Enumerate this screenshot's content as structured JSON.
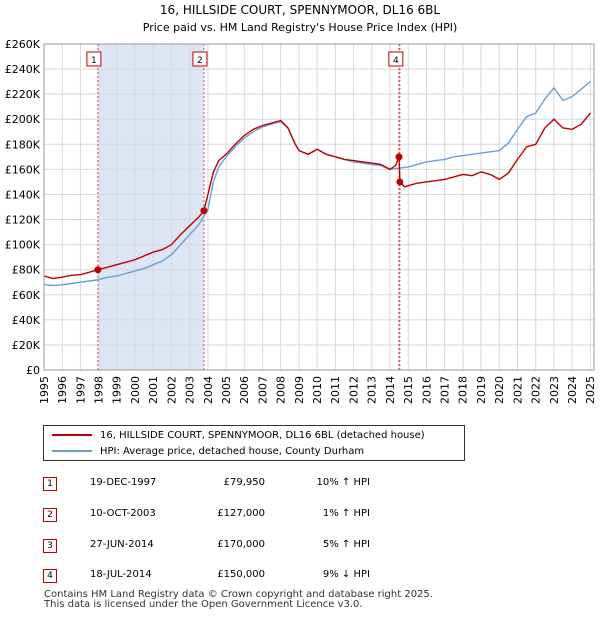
{
  "chart_data": {
    "type": "line",
    "title": "16, HILLSIDE COURT, SPENNYMOOR, DL16 6BL",
    "subtitle": "Price paid vs. HM Land Registry's House Price Index (HPI)",
    "xlabel": "",
    "ylabel": "",
    "xlim": [
      1995,
      2025.2
    ],
    "ylim": [
      0,
      260000
    ],
    "y_ticks": [
      0,
      20000,
      40000,
      60000,
      80000,
      100000,
      120000,
      140000,
      160000,
      180000,
      200000,
      220000,
      240000,
      260000
    ],
    "y_tick_labels": [
      "£0",
      "£20K",
      "£40K",
      "£60K",
      "£80K",
      "£100K",
      "£120K",
      "£140K",
      "£160K",
      "£180K",
      "£200K",
      "£220K",
      "£240K",
      "£260K"
    ],
    "x_ticks": [
      1995,
      1996,
      1997,
      1998,
      1999,
      2000,
      2001,
      2002,
      2003,
      2004,
      2005,
      2006,
      2007,
      2008,
      2009,
      2010,
      2011,
      2012,
      2013,
      2014,
      2015,
      2016,
      2017,
      2018,
      2019,
      2020,
      2021,
      2022,
      2023,
      2024,
      2025
    ],
    "grid": true,
    "shaded_ranges": [
      [
        1997.96,
        2003.78
      ],
      [
        2014.49,
        2014.54
      ]
    ],
    "shade_color": "#dde6f5",
    "series": [
      {
        "name": "16, HILLSIDE COURT, SPENNYMOOR, DL16 6BL (detached house)",
        "color": "#c00000",
        "x": [
          1995,
          1995.5,
          1996,
          1996.5,
          1997,
          1997.5,
          1997.96,
          1998.5,
          1999,
          1999.5,
          2000,
          2000.5,
          2001,
          2001.5,
          2002,
          2002.5,
          2003,
          2003.5,
          2003.78,
          2004,
          2004.3,
          2004.6,
          2005,
          2005.5,
          2006,
          2006.5,
          2007,
          2007.5,
          2008,
          2008.4,
          2008.8,
          2009,
          2009.5,
          2010,
          2010.5,
          2011,
          2011.5,
          2012,
          2012.5,
          2013,
          2013.5,
          2014,
          2014.3,
          2014.49,
          2014.54,
          2014.8,
          2015,
          2015.5,
          2016,
          2016.5,
          2017,
          2017.5,
          2018,
          2018.5,
          2019,
          2019.5,
          2020,
          2020.5,
          2021,
          2021.5,
          2022,
          2022.5,
          2023,
          2023.5,
          2024,
          2024.5,
          2025
        ],
        "values": [
          75000,
          73000,
          74000,
          75500,
          76000,
          78000,
          79950,
          82000,
          84000,
          86000,
          88000,
          91000,
          94000,
          96000,
          100000,
          108000,
          115000,
          122000,
          127000,
          140000,
          158000,
          167000,
          172000,
          180000,
          187000,
          192000,
          195000,
          197000,
          199000,
          193000,
          180000,
          175000,
          172000,
          176000,
          172000,
          170000,
          168000,
          167000,
          166000,
          165000,
          164000,
          160000,
          163000,
          170000,
          150000,
          146000,
          147000,
          149000,
          150000,
          151000,
          152000,
          154000,
          156000,
          155000,
          158000,
          156000,
          152000,
          157000,
          168000,
          178000,
          180000,
          193000,
          200000,
          193000,
          192000,
          196000,
          205000
        ]
      },
      {
        "name": "HPI: Average price, detached house, County Durham",
        "color": "#6a9fd4",
        "x": [
          1995,
          1995.5,
          1996,
          1996.5,
          1997,
          1997.5,
          1998,
          1998.5,
          1999,
          1999.5,
          2000,
          2000.5,
          2001,
          2001.5,
          2002,
          2002.5,
          2003,
          2003.5,
          2004,
          2004.3,
          2004.6,
          2005,
          2005.5,
          2006,
          2006.5,
          2007,
          2007.5,
          2008,
          2008.4,
          2008.8,
          2009,
          2009.5,
          2010,
          2010.5,
          2011,
          2011.5,
          2012,
          2012.5,
          2013,
          2013.5,
          2014,
          2014.5,
          2015,
          2015.5,
          2016,
          2016.5,
          2017,
          2017.5,
          2018,
          2018.5,
          2019,
          2019.5,
          2020,
          2020.5,
          2021,
          2021.5,
          2022,
          2022.5,
          2023,
          2023.5,
          2024,
          2024.5,
          2025
        ],
        "values": [
          68000,
          67500,
          68000,
          69000,
          70000,
          71000,
          72000,
          74000,
          75000,
          77000,
          79000,
          81000,
          84000,
          87000,
          92000,
          100000,
          108000,
          116000,
          128000,
          150000,
          162000,
          170000,
          178000,
          185000,
          190000,
          194000,
          196000,
          198000,
          193000,
          180000,
          175000,
          172000,
          176000,
          172000,
          170000,
          168000,
          166000,
          165000,
          164000,
          163000,
          160000,
          161000,
          162000,
          164000,
          166000,
          167000,
          168000,
          170000,
          171000,
          172000,
          173000,
          174000,
          175000,
          181000,
          192000,
          202000,
          205000,
          216000,
          225000,
          215000,
          218000,
          224000,
          230000
        ]
      }
    ],
    "sale_markers": [
      {
        "label": "1",
        "x": 1997.96,
        "value": 79950
      },
      {
        "label": "2",
        "x": 2003.78,
        "value": 127000
      },
      {
        "label": "3",
        "x": 2014.49,
        "value": 170000
      },
      {
        "label": "4",
        "x": 2014.54,
        "value": 150000
      }
    ],
    "visible_marker_boxes": [
      "1",
      "2",
      "4"
    ]
  },
  "legend": {
    "property_label": "16, HILLSIDE COURT, SPENNYMOOR, DL16 6BL (detached house)",
    "hpi_label": "HPI: Average price, detached house, County Durham"
  },
  "transactions": [
    {
      "num": "1",
      "date": "19-DEC-1997",
      "price": "£79,950",
      "hpi": "10% ↑ HPI"
    },
    {
      "num": "2",
      "date": "10-OCT-2003",
      "price": "£127,000",
      "hpi": "1% ↑ HPI"
    },
    {
      "num": "3",
      "date": "27-JUN-2014",
      "price": "£170,000",
      "hpi": "5% ↑ HPI"
    },
    {
      "num": "4",
      "date": "18-JUL-2014",
      "price": "£150,000",
      "hpi": "9% ↓ HPI"
    }
  ],
  "footer": {
    "line1": "Contains HM Land Registry data © Crown copyright and database right 2025.",
    "line2": "This data is licensed under the Open Government Licence v3.0."
  }
}
